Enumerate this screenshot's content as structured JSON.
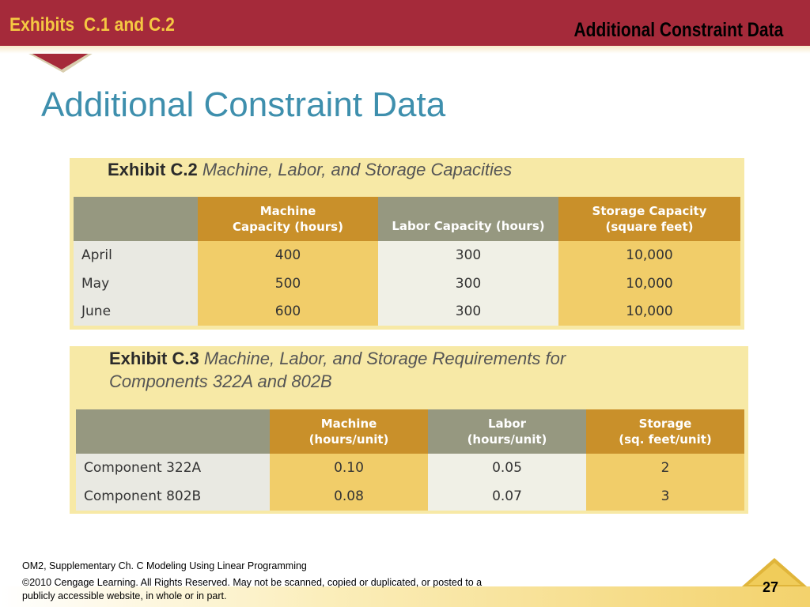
{
  "header": {
    "left_title": "Exhibits  C.1 and C.2",
    "right_title": "Additional Constraint Data"
  },
  "slide_title": "Additional Constraint Data",
  "exhibit_c2": {
    "number": "Exhibit C.2",
    "caption": "Machine, Labor, and Storage Capacities",
    "columns": [
      "",
      "Machine\nCapacity (hours)",
      "Labor Capacity (hours)",
      "Storage Capacity\n(square feet)"
    ],
    "rows": [
      [
        "April",
        "400",
        "300",
        "10,000"
      ],
      [
        "May",
        "500",
        "300",
        "10,000"
      ],
      [
        "June",
        "600",
        "300",
        "10,000"
      ]
    ]
  },
  "exhibit_c3": {
    "number": "Exhibit C.3",
    "caption_line1": "Machine, Labor, and Storage Requirements for",
    "caption_line2": "Components 322A and 802B",
    "columns": [
      "",
      "Machine\n(hours/unit)",
      "Labor\n(hours/unit)",
      "Storage\n(sq. feet/unit)"
    ],
    "rows": [
      [
        "Component 322A",
        "0.10",
        "0.05",
        "2"
      ],
      [
        "Component 802B",
        "0.08",
        "0.07",
        "3"
      ]
    ]
  },
  "footer": {
    "line1": "OM2, Supplementary Ch. C Modeling Using Linear Programming",
    "line2": "©2010 Cengage Learning.  All Rights Reserved. May not be scanned, copied or duplicated, or posted to a publicly accessible website, in whole or in part.",
    "page_number": "27"
  },
  "colors": {
    "header_band": "#a52a3a",
    "header_left_text": "#f5c842",
    "title_blue": "#3e8fad",
    "exhibit_bg": "#f7e9a6",
    "header_gold": "#c9902a",
    "header_gray": "#969880",
    "cell_gold": "#f1cd69"
  }
}
